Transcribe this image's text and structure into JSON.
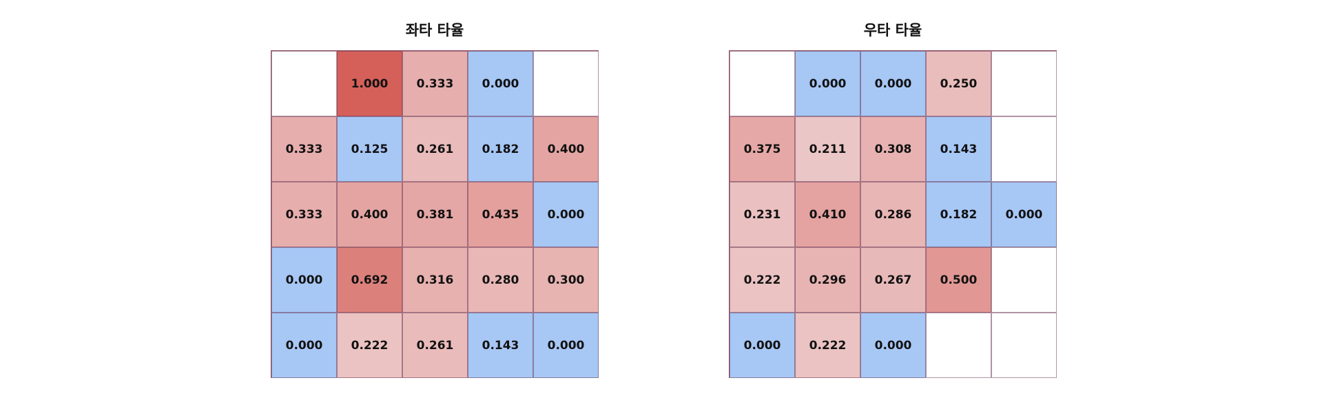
{
  "chart_data": [
    {
      "type": "heatmap",
      "title": "좌타 타율",
      "rows": 5,
      "cols": 5,
      "values": [
        [
          null,
          1.0,
          0.333,
          0.0,
          null
        ],
        [
          0.333,
          0.125,
          0.261,
          0.182,
          0.4
        ],
        [
          0.333,
          0.4,
          0.381,
          0.435,
          0.0
        ],
        [
          0.0,
          0.692,
          0.316,
          0.28,
          0.3
        ],
        [
          0.0,
          0.222,
          0.261,
          0.143,
          0.0
        ]
      ],
      "labels": [
        [
          "",
          "1.000",
          "0.333",
          "0.000",
          ""
        ],
        [
          "0.333",
          "0.125",
          "0.261",
          "0.182",
          "0.400"
        ],
        [
          "0.333",
          "0.400",
          "0.381",
          "0.435",
          "0.000"
        ],
        [
          "0.000",
          "0.692",
          "0.316",
          "0.280",
          "0.300"
        ],
        [
          "0.000",
          "0.222",
          "0.261",
          "0.143",
          "0.000"
        ]
      ]
    },
    {
      "type": "heatmap",
      "title": "우타 타율",
      "rows": 5,
      "cols": 5,
      "values": [
        [
          null,
          0.0,
          0.0,
          0.25,
          null
        ],
        [
          0.375,
          0.211,
          0.308,
          0.143,
          null
        ],
        [
          0.231,
          0.41,
          0.286,
          0.182,
          0.0
        ],
        [
          0.222,
          0.296,
          0.267,
          0.5,
          null
        ],
        [
          0.0,
          0.222,
          0.0,
          null,
          null
        ]
      ],
      "labels": [
        [
          "",
          "0.000",
          "0.000",
          "0.250",
          ""
        ],
        [
          "0.375",
          "0.211",
          "0.308",
          "0.143",
          ""
        ],
        [
          "0.231",
          "0.410",
          "0.286",
          "0.182",
          "0.000"
        ],
        [
          "0.222",
          "0.296",
          "0.267",
          "0.500",
          ""
        ],
        [
          "0.000",
          "0.222",
          "0.000",
          "",
          ""
        ]
      ]
    }
  ],
  "colors": {
    "low": "#a7c7f5",
    "high": "#d5605a",
    "mid": "#eccaca",
    "empty": "#ffffff"
  }
}
